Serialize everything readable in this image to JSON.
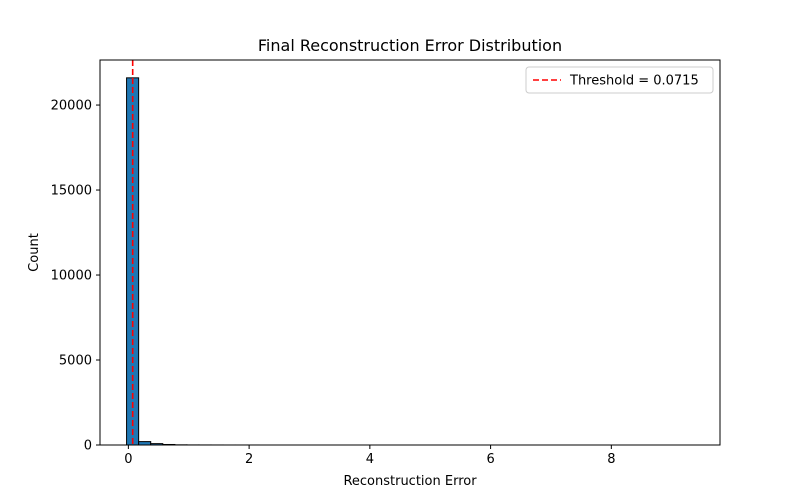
{
  "chart_data": {
    "type": "bar",
    "title": "Final Reconstruction Error Distribution",
    "xlabel": "Reconstruction Error",
    "ylabel": "Count",
    "xlim": [
      -0.47,
      9.8
    ],
    "ylim": [
      0,
      22650
    ],
    "x_ticks": [
      0,
      2,
      4,
      6,
      8
    ],
    "y_ticks": [
      0,
      5000,
      10000,
      15000,
      20000
    ],
    "grid": false,
    "legend_position": "upper right",
    "bin_width": 0.2,
    "bins_start": -0.03,
    "bins": [
      {
        "x0": -0.03,
        "count": 21600
      },
      {
        "x0": 0.17,
        "count": 200
      },
      {
        "x0": 0.37,
        "count": 80
      },
      {
        "x0": 0.57,
        "count": 30
      },
      {
        "x0": 0.77,
        "count": 10
      },
      {
        "x0": 0.97,
        "count": 5
      },
      {
        "x0": 1.17,
        "count": 3
      },
      {
        "x0": 1.37,
        "count": 2
      },
      {
        "x0": 1.57,
        "count": 1
      },
      {
        "x0": 1.77,
        "count": 1
      },
      {
        "x0": 1.97,
        "count": 1
      }
    ],
    "threshold": {
      "value": 0.0715,
      "label": "Threshold = 0.0715",
      "color": "#ff0000",
      "style": "dashed"
    },
    "bar_fill": "#1f77b4",
    "bar_edge": "#000000"
  }
}
